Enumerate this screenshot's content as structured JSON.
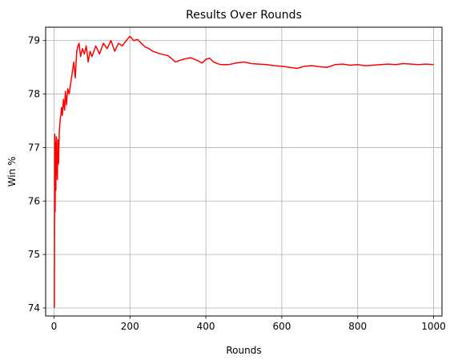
{
  "chart_data": {
    "type": "line",
    "title": "Results Over Rounds",
    "xlabel": "Rounds",
    "ylabel": "Win %",
    "xlim": [
      -22,
      1022
    ],
    "ylim": [
      73.85,
      79.25
    ],
    "xticks": [
      0,
      200,
      400,
      600,
      800,
      1000
    ],
    "yticks": [
      74,
      75,
      76,
      77,
      78,
      79
    ],
    "grid": true,
    "line_color": "#ff0000",
    "series": [
      {
        "x": [
          1,
          2,
          3,
          4,
          5,
          6,
          7,
          8,
          9,
          10,
          12,
          14,
          16,
          18,
          20,
          22,
          25,
          28,
          30,
          33,
          36,
          40,
          44,
          48,
          52,
          56,
          60,
          63,
          66,
          70,
          75,
          80,
          85,
          90,
          95,
          100,
          110,
          120,
          130,
          140,
          150,
          160,
          170,
          180,
          190,
          200,
          210,
          220,
          230,
          240,
          250,
          260,
          280,
          300,
          320,
          340,
          360,
          380,
          390,
          400,
          410,
          420,
          430,
          440,
          460,
          480,
          500,
          520,
          540,
          560,
          580,
          600,
          620,
          640,
          660,
          680,
          700,
          720,
          740,
          760,
          780,
          800,
          820,
          840,
          860,
          880,
          900,
          920,
          940,
          960,
          980,
          1000
        ],
        "y": [
          74.0,
          77.25,
          75.8,
          77.1,
          76.2,
          77.2,
          76.5,
          76.9,
          76.4,
          77.15,
          76.7,
          77.3,
          77.5,
          77.6,
          77.75,
          77.6,
          77.9,
          77.7,
          78.05,
          77.8,
          78.1,
          78.0,
          78.2,
          78.4,
          78.6,
          78.3,
          78.8,
          78.9,
          78.95,
          78.7,
          78.85,
          78.75,
          78.9,
          78.6,
          78.8,
          78.7,
          78.9,
          78.75,
          78.95,
          78.85,
          79.0,
          78.8,
          78.95,
          78.9,
          79.0,
          79.08,
          79.0,
          79.02,
          78.95,
          78.88,
          78.85,
          78.8,
          78.75,
          78.72,
          78.6,
          78.65,
          78.68,
          78.62,
          78.58,
          78.65,
          78.67,
          78.6,
          78.57,
          78.55,
          78.55,
          78.58,
          78.6,
          78.57,
          78.56,
          78.55,
          78.53,
          78.52,
          78.5,
          78.48,
          78.52,
          78.53,
          78.51,
          78.5,
          78.55,
          78.56,
          78.54,
          78.55,
          78.53,
          78.54,
          78.55,
          78.56,
          78.55,
          78.57,
          78.56,
          78.55,
          78.56,
          78.55
        ]
      }
    ]
  }
}
